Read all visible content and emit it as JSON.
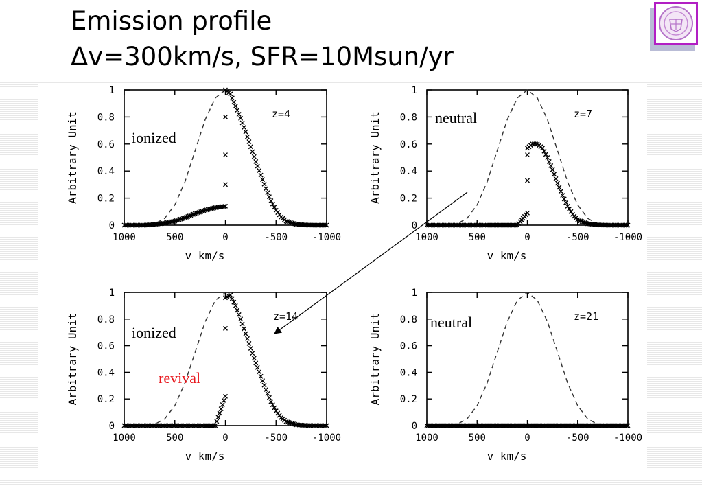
{
  "slide": {
    "title_line1": "Emission profile",
    "title_line2": "Δv=300km/s, SFR=10Msun/yr"
  },
  "chart_data": [
    {
      "type": "scatter",
      "x_ticks": [
        "1000",
        "500",
        "0",
        "-500",
        "-1000"
      ],
      "y_ticks": [
        "0",
        "0.2",
        "0.4",
        "0.6",
        "0.8",
        "1"
      ],
      "xlabel": "v km/s",
      "ylabel": "Arbitrary Unit",
      "xlim": [
        1000,
        -1000
      ],
      "ylim": [
        0,
        1
      ],
      "panel_label": "z=4",
      "annotations": [
        {
          "text": "ionized",
          "color": "#000000"
        }
      ],
      "series": [
        {
          "style": "dashed-line",
          "points": [
            [
              1000,
              0
            ],
            [
              800,
              0
            ],
            [
              700,
              0.01
            ],
            [
              600,
              0.05
            ],
            [
              500,
              0.15
            ],
            [
              400,
              0.32
            ],
            [
              300,
              0.55
            ],
            [
              200,
              0.78
            ],
            [
              100,
              0.94
            ],
            [
              0,
              1
            ]
          ]
        },
        {
          "style": "cross-markers",
          "points": [
            [
              1000,
              0
            ],
            [
              800,
              0
            ],
            [
              700,
              0.005
            ],
            [
              600,
              0.015
            ],
            [
              500,
              0.03
            ],
            [
              400,
              0.055
            ],
            [
              300,
              0.085
            ],
            [
              200,
              0.11
            ],
            [
              100,
              0.13
            ],
            [
              0,
              0.14
            ],
            [
              0,
              0.3
            ],
            [
              0,
              0.52
            ],
            [
              0,
              0.8
            ],
            [
              0,
              1
            ],
            [
              -50,
              0.97
            ],
            [
              -100,
              0.88
            ],
            [
              -150,
              0.79
            ],
            [
              -200,
              0.69
            ],
            [
              -250,
              0.58
            ],
            [
              -300,
              0.47
            ],
            [
              -350,
              0.37
            ],
            [
              -400,
              0.27
            ],
            [
              -450,
              0.18
            ],
            [
              -500,
              0.11
            ],
            [
              -550,
              0.06
            ],
            [
              -600,
              0.03
            ],
            [
              -700,
              0.006
            ],
            [
              -800,
              0.001
            ],
            [
              -900,
              0
            ],
            [
              -1000,
              0
            ]
          ]
        }
      ]
    },
    {
      "type": "scatter",
      "x_ticks": [
        "1000",
        "500",
        "0",
        "-500",
        "-1000"
      ],
      "y_ticks": [
        "0",
        "0.2",
        "0.4",
        "0.6",
        "0.8",
        "1"
      ],
      "xlabel": "v km/s",
      "ylabel": "Arbitrary Unit",
      "xlim": [
        1000,
        -1000
      ],
      "ylim": [
        0,
        1
      ],
      "panel_label": "z=7",
      "annotations": [
        {
          "text": "neutral",
          "color": "#000000"
        }
      ],
      "series": [
        {
          "style": "dashed-line",
          "points": [
            [
              1000,
              0
            ],
            [
              800,
              0
            ],
            [
              700,
              0.01
            ],
            [
              600,
              0.05
            ],
            [
              500,
              0.15
            ],
            [
              400,
              0.32
            ],
            [
              300,
              0.55
            ],
            [
              200,
              0.78
            ],
            [
              100,
              0.94
            ],
            [
              0,
              1
            ],
            [
              -100,
              0.94
            ],
            [
              -200,
              0.78
            ],
            [
              -300,
              0.55
            ],
            [
              -400,
              0.32
            ],
            [
              -500,
              0.15
            ],
            [
              -600,
              0.05
            ],
            [
              -700,
              0.01
            ],
            [
              -800,
              0
            ],
            [
              -1000,
              0
            ]
          ]
        },
        {
          "style": "cross-markers",
          "points": [
            [
              1000,
              0
            ],
            [
              800,
              0
            ],
            [
              600,
              0
            ],
            [
              400,
              0
            ],
            [
              300,
              0
            ],
            [
              200,
              0
            ],
            [
              100,
              0
            ],
            [
              0,
              0.09
            ],
            [
              0,
              0.33
            ],
            [
              0,
              0.52
            ],
            [
              0,
              0.57
            ],
            [
              -50,
              0.6
            ],
            [
              -100,
              0.6
            ],
            [
              -150,
              0.57
            ],
            [
              -200,
              0.5
            ],
            [
              -250,
              0.41
            ],
            [
              -300,
              0.31
            ],
            [
              -350,
              0.22
            ],
            [
              -400,
              0.14
            ],
            [
              -450,
              0.08
            ],
            [
              -500,
              0.04
            ],
            [
              -600,
              0.01
            ],
            [
              -700,
              0.002
            ],
            [
              -800,
              0
            ],
            [
              -1000,
              0
            ]
          ]
        }
      ]
    },
    {
      "type": "scatter",
      "x_ticks": [
        "1000",
        "500",
        "0",
        "-500",
        "-1000"
      ],
      "y_ticks": [
        "0",
        "0.2",
        "0.4",
        "0.6",
        "0.8",
        "1"
      ],
      "xlabel": "v km/s",
      "ylabel": "Arbitrary Unit",
      "xlim": [
        1000,
        -1000
      ],
      "ylim": [
        0,
        1
      ],
      "panel_label": "z=14",
      "annotations": [
        {
          "text": "ionized",
          "color": "#000000"
        },
        {
          "text": "revival",
          "color": "#e8161c"
        }
      ],
      "series": [
        {
          "style": "dashed-line",
          "points": [
            [
              1000,
              0
            ],
            [
              800,
              0
            ],
            [
              700,
              0.01
            ],
            [
              600,
              0.05
            ],
            [
              500,
              0.15
            ],
            [
              400,
              0.32
            ],
            [
              300,
              0.55
            ],
            [
              200,
              0.78
            ],
            [
              100,
              0.94
            ],
            [
              0,
              1
            ]
          ]
        },
        {
          "style": "cross-markers",
          "points": [
            [
              1000,
              0
            ],
            [
              800,
              0
            ],
            [
              600,
              0
            ],
            [
              400,
              0
            ],
            [
              200,
              0
            ],
            [
              100,
              0
            ],
            [
              0,
              0.22
            ],
            [
              0,
              0.73
            ],
            [
              0,
              0.96
            ],
            [
              -50,
              0.98
            ],
            [
              -100,
              0.9
            ],
            [
              -150,
              0.8
            ],
            [
              -200,
              0.69
            ],
            [
              -250,
              0.58
            ],
            [
              -300,
              0.47
            ],
            [
              -350,
              0.37
            ],
            [
              -400,
              0.27
            ],
            [
              -450,
              0.18
            ],
            [
              -500,
              0.11
            ],
            [
              -550,
              0.06
            ],
            [
              -600,
              0.03
            ],
            [
              -700,
              0.006
            ],
            [
              -800,
              0.001
            ],
            [
              -1000,
              0
            ]
          ]
        }
      ]
    },
    {
      "type": "scatter",
      "x_ticks": [
        "1000",
        "500",
        "0",
        "-500",
        "-1000"
      ],
      "y_ticks": [
        "0",
        "0.2",
        "0.4",
        "0.6",
        "0.8",
        "1"
      ],
      "xlabel": "v km/s",
      "ylabel": "Arbitrary Unit",
      "xlim": [
        1000,
        -1000
      ],
      "ylim": [
        0,
        1
      ],
      "panel_label": "z=21",
      "annotations": [
        {
          "text": "neutral",
          "color": "#000000"
        }
      ],
      "series": [
        {
          "style": "dashed-line",
          "points": [
            [
              1000,
              0
            ],
            [
              800,
              0
            ],
            [
              700,
              0.01
            ],
            [
              600,
              0.05
            ],
            [
              500,
              0.15
            ],
            [
              400,
              0.32
            ],
            [
              300,
              0.55
            ],
            [
              200,
              0.78
            ],
            [
              100,
              0.94
            ],
            [
              0,
              1
            ],
            [
              -100,
              0.94
            ],
            [
              -200,
              0.78
            ],
            [
              -300,
              0.55
            ],
            [
              -400,
              0.32
            ],
            [
              -500,
              0.15
            ],
            [
              -600,
              0.05
            ],
            [
              -700,
              0.01
            ],
            [
              -800,
              0
            ],
            [
              -1000,
              0
            ]
          ]
        },
        {
          "style": "cross-markers",
          "points": [
            [
              1000,
              0
            ],
            [
              900,
              0
            ],
            [
              800,
              0
            ],
            [
              700,
              0
            ],
            [
              600,
              0
            ],
            [
              500,
              0
            ],
            [
              400,
              0
            ],
            [
              300,
              0
            ],
            [
              200,
              0
            ],
            [
              100,
              0
            ],
            [
              0,
              0
            ],
            [
              -100,
              0
            ],
            [
              -200,
              0
            ],
            [
              -300,
              0
            ],
            [
              -400,
              0
            ],
            [
              -500,
              0
            ],
            [
              -600,
              0
            ],
            [
              -700,
              0
            ],
            [
              -800,
              0
            ],
            [
              -900,
              0
            ],
            [
              -1000,
              0
            ]
          ]
        }
      ]
    }
  ]
}
